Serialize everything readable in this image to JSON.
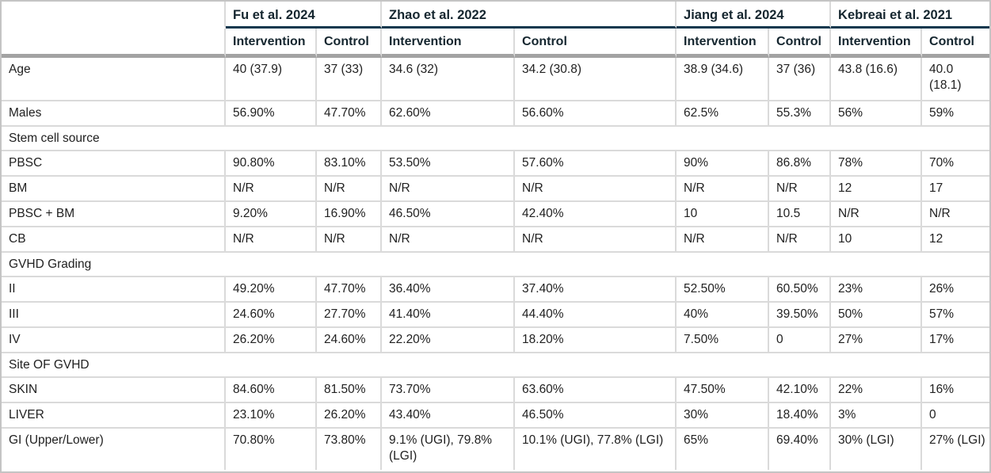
{
  "colors": {
    "study_underline": "#11384e",
    "header_divider": "#a3a3a3",
    "grid_line": "#dadada",
    "outer_border": "#c4c4c4",
    "header_text": "#15262f",
    "body_text": "#212121"
  },
  "header": {
    "studies": [
      {
        "label": "Fu et al. 2024"
      },
      {
        "label": "Zhao et al. 2022"
      },
      {
        "label": "Jiang et al. 2024"
      },
      {
        "label": "Kebreai et al. 2021"
      }
    ],
    "subcolumns": [
      "Intervention",
      "Control"
    ]
  },
  "rows": [
    {
      "type": "data",
      "label": "Age",
      "values": [
        "40 (37.9)",
        "37 (33)",
        "34.6 (32)",
        "34.2 (30.8)",
        "38.9 (34.6)",
        "37 (36)",
        "43.8 (16.6)",
        "40.0 (18.1)"
      ]
    },
    {
      "type": "data",
      "label": "Males",
      "values": [
        "56.90%",
        "47.70%",
        "62.60%",
        "56.60%",
        "62.5%",
        "55.3%",
        "56%",
        "59%"
      ]
    },
    {
      "type": "section",
      "label": "Stem cell source"
    },
    {
      "type": "data",
      "label": "PBSC",
      "values": [
        "90.80%",
        "83.10%",
        "53.50%",
        "57.60%",
        "90%",
        "86.8%",
        "78%",
        "70%"
      ]
    },
    {
      "type": "data",
      "label": "BM",
      "values": [
        "N/R",
        "N/R",
        "N/R",
        "N/R",
        "N/R",
        "N/R",
        "12",
        "17"
      ]
    },
    {
      "type": "data",
      "label": "PBSC + BM",
      "values": [
        "9.20%",
        "16.90%",
        "46.50%",
        "42.40%",
        "10",
        "10.5",
        "N/R",
        "N/R"
      ]
    },
    {
      "type": "data",
      "label": "CB",
      "values": [
        "N/R",
        "N/R",
        "N/R",
        "N/R",
        "N/R",
        "N/R",
        "10",
        "12"
      ]
    },
    {
      "type": "section",
      "label": "GVHD Grading"
    },
    {
      "type": "data",
      "label": "II",
      "values": [
        "49.20%",
        "47.70%",
        "36.40%",
        "37.40%",
        "52.50%",
        "60.50%",
        "23%",
        "26%"
      ]
    },
    {
      "type": "data",
      "label": "III",
      "values": [
        "24.60%",
        "27.70%",
        "41.40%",
        "44.40%",
        "40%",
        "39.50%",
        "50%",
        "57%"
      ]
    },
    {
      "type": "data",
      "label": "IV",
      "values": [
        "26.20%",
        "24.60%",
        "22.20%",
        "18.20%",
        "7.50%",
        "0",
        "27%",
        "17%"
      ]
    },
    {
      "type": "section",
      "label": "Site OF GVHD"
    },
    {
      "type": "data",
      "label": "SKIN",
      "values": [
        "84.60%",
        "81.50%",
        "73.70%",
        "63.60%",
        "47.50%",
        "42.10%",
        "22%",
        "16%"
      ]
    },
    {
      "type": "data",
      "label": "LIVER",
      "values": [
        "23.10%",
        "26.20%",
        "43.40%",
        "46.50%",
        "30%",
        "18.40%",
        "3%",
        "0"
      ]
    },
    {
      "type": "data",
      "label": "GI (Upper/Lower)",
      "values": [
        "70.80%",
        "73.80%",
        "9.1% (UGI), 79.8% (LGI)",
        "10.1% (UGI), 77.8% (LGI)",
        "65%",
        "69.40%",
        "30% (LGI)",
        "27% (LGI)"
      ]
    }
  ]
}
